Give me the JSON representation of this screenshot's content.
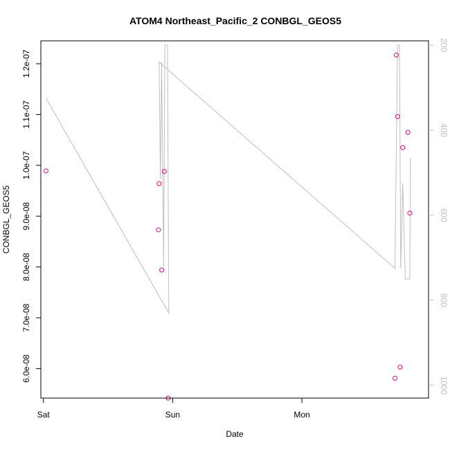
{
  "chart_data": {
    "type": "scatter",
    "title": "ATOM4 Northeast_Pacific_2 CONBGL_GEOS5",
    "xlabel": "Date",
    "ylabel": "CONBGL_GEOS5",
    "x_ticks": [
      "Sat",
      "Sun",
      "Mon"
    ],
    "y_ticks": [
      "6.0e-08",
      "7.0e-08",
      "8.0e-08",
      "9.0e-08",
      "1.0e-07",
      "1.1e-07",
      "1.2e-07"
    ],
    "y_tick_values": [
      6e-08,
      7e-08,
      8e-08,
      9e-08,
      1e-07,
      1.1e-07,
      1.2e-07
    ],
    "y_right_ticks": [
      "200",
      "400",
      "600",
      "800",
      "1000"
    ],
    "y_right_tick_values": [
      200,
      400,
      600,
      800,
      1000
    ],
    "xlim": [
      -0.02,
      2.98
    ],
    "ylim": [
      5.42e-08,
      1.245e-07
    ],
    "y_right_lim": [
      1030,
      190
    ],
    "points_color": "#e6007e",
    "line_color": "#bebebe",
    "series": [
      {
        "kind": "points",
        "axis": "left",
        "x": [
          0.02,
          0.89,
          0.895,
          0.915,
          0.935,
          0.965,
          2.72,
          2.73,
          2.74,
          2.76,
          2.78,
          2.82,
          2.835
        ],
        "y": [
          9.89e-08,
          8.73e-08,
          9.64e-08,
          7.94e-08,
          9.88e-08,
          5.42e-08,
          5.81e-08,
          1.217e-07,
          1.096e-07,
          6.03e-08,
          1.035e-07,
          1.065e-07,
          9.06e-08
        ]
      },
      {
        "kind": "line",
        "axis": "right",
        "x": [
          0.02,
          0.97,
          0.96,
          0.94,
          0.93,
          0.915,
          0.905,
          0.895,
          2.72,
          2.74,
          2.755,
          2.765,
          2.78,
          2.8,
          2.835,
          2.84
        ],
        "y": [
          325,
          830,
          200,
          200,
          720,
          240,
          515,
          240,
          725,
          200,
          200,
          725,
          525,
          750,
          750,
          465
        ]
      }
    ]
  }
}
